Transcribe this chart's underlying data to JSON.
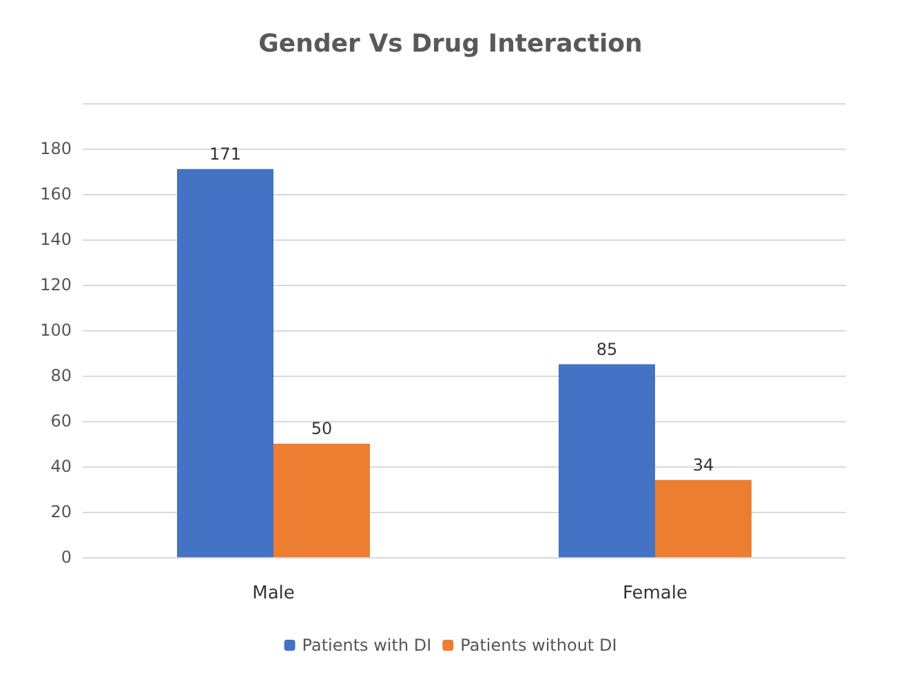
{
  "chart_data": {
    "type": "bar",
    "title": "Gender Vs Drug Interaction",
    "categories": [
      "Male",
      "Female"
    ],
    "series": [
      {
        "name": "Patients with DI",
        "color": "#4472c4",
        "values": [
          171,
          85
        ]
      },
      {
        "name": "Patients without DI",
        "color": "#ed7d31",
        "values": [
          50,
          34
        ]
      }
    ],
    "ylim": [
      0,
      200
    ],
    "yticks": [
      0,
      20,
      40,
      60,
      80,
      100,
      120,
      140,
      160,
      180,
      {
        "value": 200,
        "label": null
      }
    ],
    "grid": "y",
    "legend": "bottom",
    "data_labels": true
  }
}
